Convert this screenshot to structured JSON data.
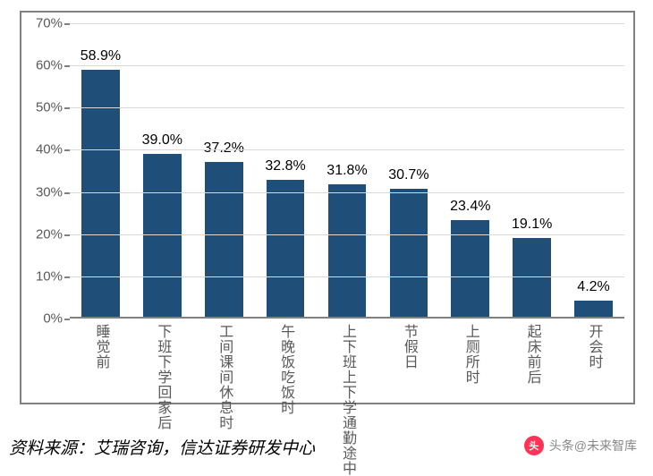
{
  "chart": {
    "type": "bar",
    "categories": [
      "睡觉前",
      "下班下学回家后",
      "工间课间休息时",
      "午晚饭吃饭时",
      "上下班上下学通勤途中",
      "节假日",
      "上厕所时",
      "起床前后",
      "开会时"
    ],
    "values": [
      58.9,
      39.0,
      37.2,
      32.8,
      31.8,
      30.7,
      23.4,
      19.1,
      4.2
    ],
    "value_labels": [
      "58.9%",
      "39.0%",
      "37.2%",
      "32.8%",
      "31.8%",
      "30.7%",
      "23.4%",
      "19.1%",
      "4.2%"
    ],
    "bar_color": "#1f4e79",
    "yticks": [
      0,
      10,
      20,
      30,
      40,
      50,
      60,
      70
    ],
    "ytick_labels": [
      "0%",
      "10%",
      "20%",
      "30%",
      "40%",
      "50%",
      "60%",
      "70%"
    ],
    "ylim_max": 70,
    "grid_color": "#d9d9d9",
    "axis_color": "#808080",
    "border_color": "#808080",
    "label_color": "#595959",
    "value_label_color": "#000000",
    "label_fontsize": 16,
    "tick_fontsize": 15,
    "bar_width_ratio": 0.62
  },
  "source": {
    "text": "资料来源：艾瑞咨询，信达证券研发中心"
  },
  "footer": {
    "logo_text": "头",
    "text": "头条@未来智库"
  }
}
